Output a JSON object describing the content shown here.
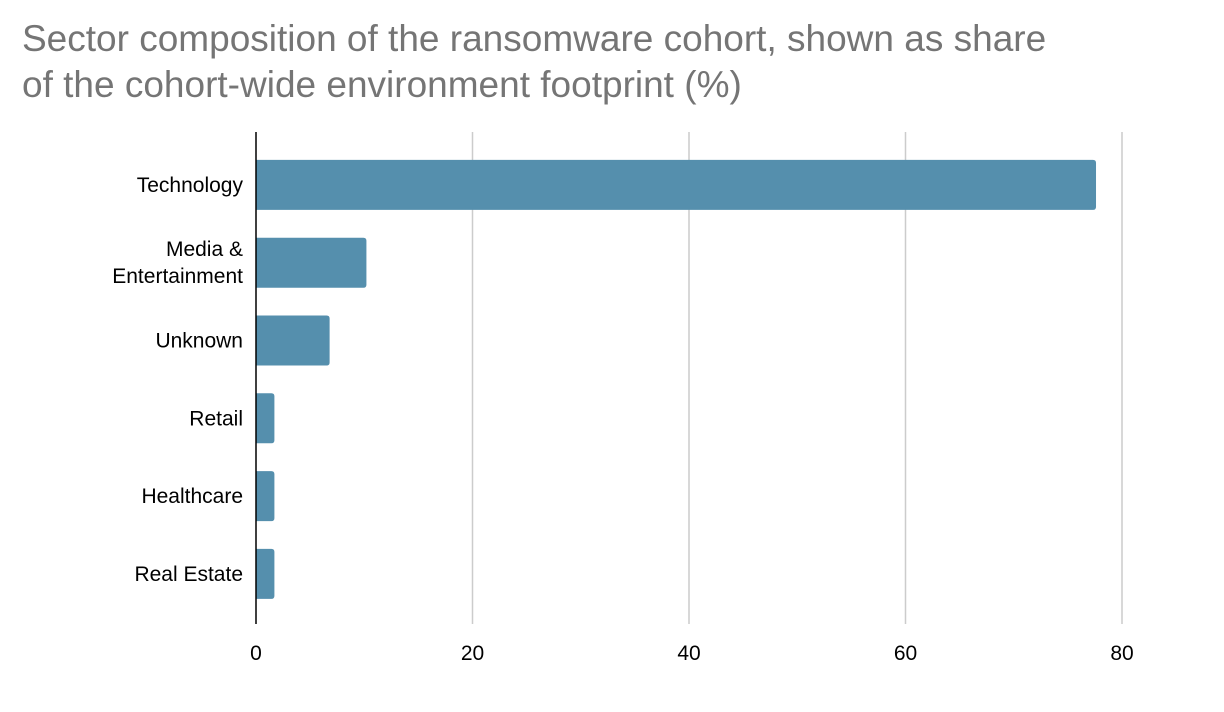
{
  "chart_data": {
    "type": "bar",
    "orientation": "horizontal",
    "title": [
      "Sector composition of the ransomware cohort, shown as share",
      "of the cohort-wide environment footprint (%)"
    ],
    "categories": [
      [
        "Technology"
      ],
      [
        "Media &",
        "Entertainment"
      ],
      [
        "Unknown"
      ],
      [
        "Retail"
      ],
      [
        "Healthcare"
      ],
      [
        "Real Estate"
      ]
    ],
    "values": [
      77.6,
      10.2,
      6.8,
      1.7,
      1.7,
      1.7
    ],
    "xlim": [
      0,
      80
    ],
    "xticks": [
      0,
      20,
      40,
      60,
      80
    ],
    "grid": true,
    "bar_color": "#558fad",
    "grid_color": "#cccccc",
    "axis_color": "#000000"
  }
}
